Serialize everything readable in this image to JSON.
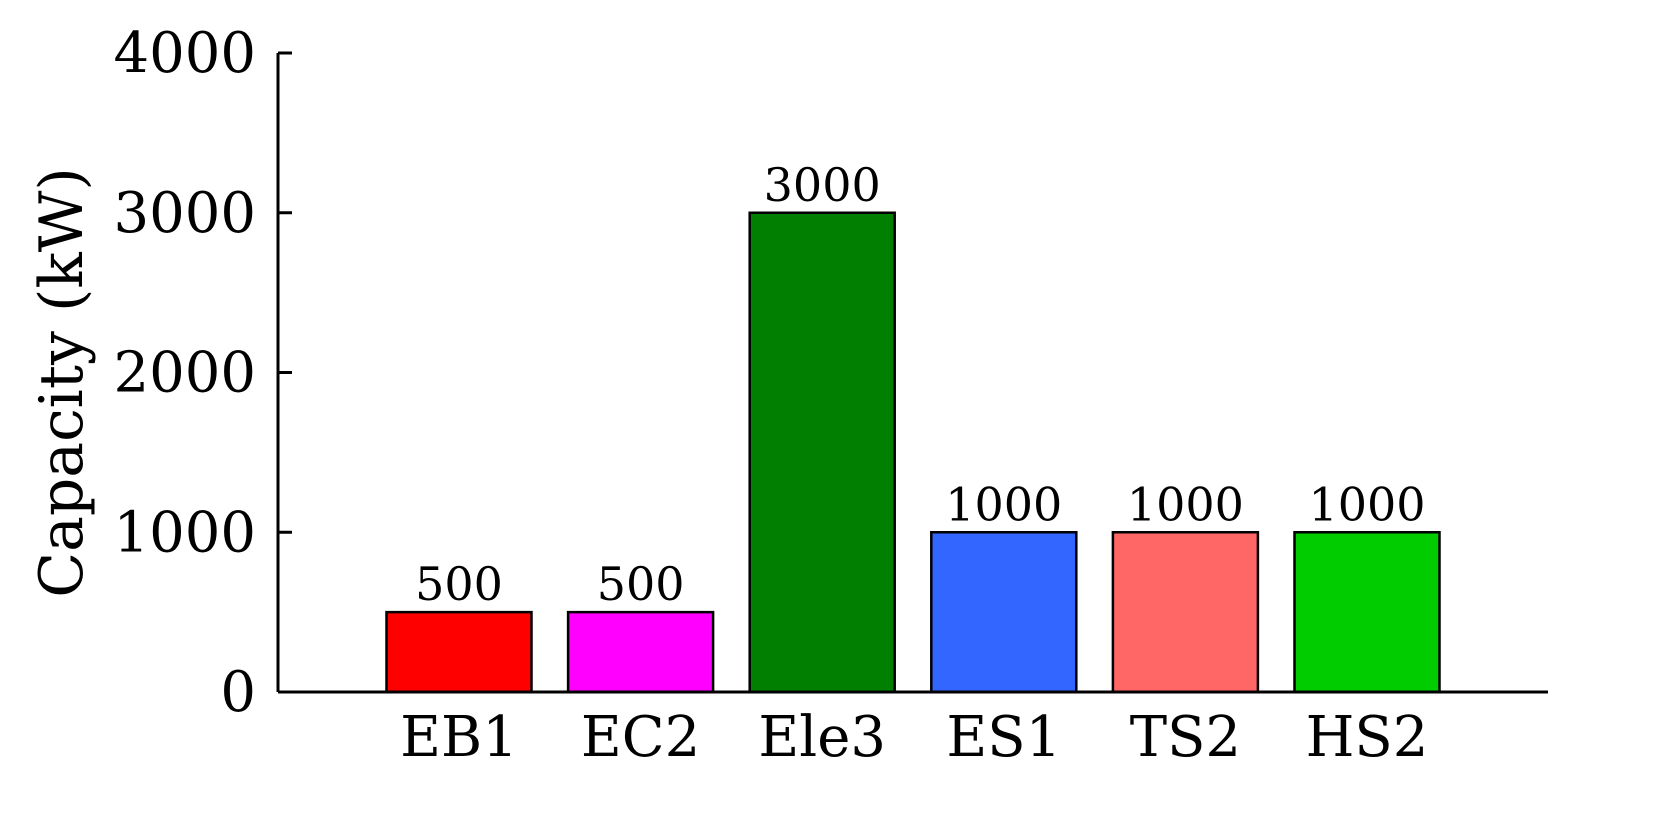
{
  "chart_data": {
    "type": "bar",
    "categories": [
      "EB1",
      "EC2",
      "Ele3",
      "ES1",
      "TS2",
      "HS2"
    ],
    "values": [
      500,
      500,
      3000,
      1000,
      1000,
      1000
    ],
    "data_labels": [
      "500",
      "500",
      "3000",
      "1000",
      "1000",
      "1000"
    ],
    "colors": [
      "#ff0000",
      "#ff00ff",
      "#007f00",
      "#3366ff",
      "#ff6666",
      "#00cc00"
    ],
    "title": "",
    "xlabel": "",
    "ylabel": "Capacity (kW)",
    "ylim": [
      0,
      4000
    ],
    "yticks": [
      "0",
      "1000",
      "2000",
      "3000",
      "4000"
    ],
    "grid": false,
    "legend": "none"
  }
}
